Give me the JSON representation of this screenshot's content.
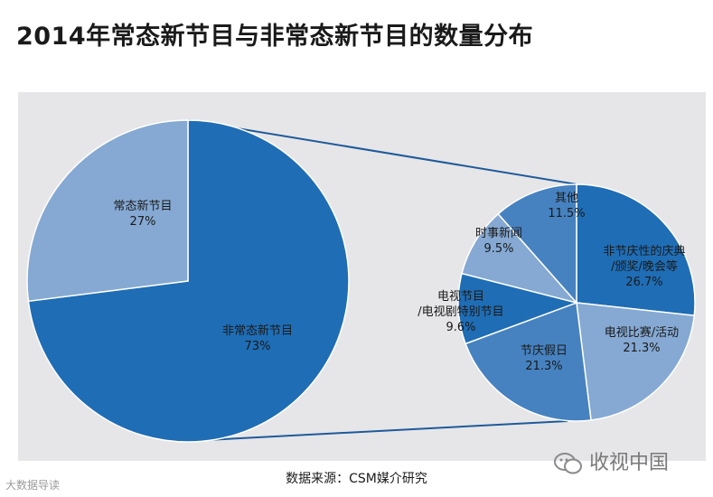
{
  "title": "2014年常态新节目与非常态新节目的数量分布",
  "source": "数据来源：CSM媒介研究",
  "watermark_right": "收视中国",
  "watermark_left": "大数据导读",
  "colors": {
    "panel": "#e6e6e8",
    "dark_blue": "#1f6db5",
    "mid_blue": "#4682c0",
    "light_blue": "#85a9d3",
    "connector": "#1f5a99"
  },
  "chart_data": [
    {
      "type": "pie",
      "title": "",
      "slices": [
        {
          "name": "非常态新节目",
          "label": "73%",
          "value": 73,
          "color": "#1f6db5"
        },
        {
          "name": "常态新节目",
          "label": "27%",
          "value": 27,
          "color": "#85a9d3"
        }
      ]
    },
    {
      "type": "pie",
      "title": "",
      "slices": [
        {
          "name": "非节庆性的庆典/颁奖/晚会等",
          "label": "26.7%",
          "value": 26.7,
          "color": "#1f6db5"
        },
        {
          "name": "电视比赛/活动",
          "label": "21.3%",
          "value": 21.3,
          "color": "#85a9d3"
        },
        {
          "name": "节庆假日",
          "label": "21.3%",
          "value": 21.3,
          "color": "#4682c0"
        },
        {
          "name": "电视节目/电视剧特别节目",
          "label": "9.6%",
          "value": 9.6,
          "color": "#1f6db5"
        },
        {
          "name": "时事新闻",
          "label": "9.5%",
          "value": 9.5,
          "color": "#85a9d3"
        },
        {
          "name": "其他",
          "label": "11.5%",
          "value": 11.5,
          "color": "#4682c0"
        }
      ]
    }
  ]
}
